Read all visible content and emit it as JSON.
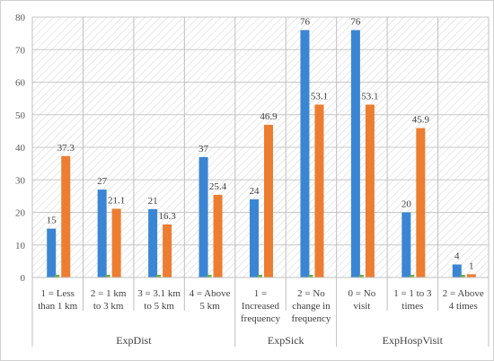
{
  "chart_data": {
    "type": "bar",
    "categories": [
      [
        "1 = Less",
        "than 1 km"
      ],
      [
        "2 = 1 km",
        "to 3 km"
      ],
      [
        "3 = 3.1 km",
        "to 5 km"
      ],
      [
        "4 = Above",
        "5 km"
      ],
      [
        "1 =",
        "Increased",
        "frequency"
      ],
      [
        "2 = No",
        "change in",
        "frequency"
      ],
      [
        "0 = No",
        "visit"
      ],
      [
        "1 = 1 to 3",
        "times"
      ],
      [
        "2 = Above",
        "4 times"
      ]
    ],
    "groups": [
      {
        "label": "ExpDist",
        "count": 4
      },
      {
        "label": "ExpSick",
        "count": 2
      },
      {
        "label": "ExpHospVisit",
        "count": 3
      }
    ],
    "series": [
      {
        "values": [
          15,
          27,
          21,
          37,
          24,
          76,
          76,
          20,
          4
        ],
        "labels": [
          "15",
          "27",
          "21",
          "37",
          "24",
          "76",
          "76",
          "20",
          "4"
        ],
        "color": "#3a86d4"
      },
      {
        "values": [
          37.3,
          21.1,
          16.3,
          25.4,
          46.9,
          53.1,
          53.1,
          45.9,
          1
        ],
        "labels": [
          "37.3",
          "21.1",
          "16.3",
          "25.4",
          "46.9",
          "53.1",
          "53.1",
          "45.9",
          "1"
        ],
        "color": "#ed7d31"
      }
    ],
    "yticks": [
      0,
      10,
      20,
      30,
      40,
      50,
      60,
      70,
      80
    ],
    "ylim": [
      0,
      80
    ],
    "grid": true,
    "colors": {
      "hatch": "#d9d9d9",
      "gridline": "#c8c8c8",
      "axis": "#bfbfbf",
      "base_accent": "#70ad47"
    }
  }
}
